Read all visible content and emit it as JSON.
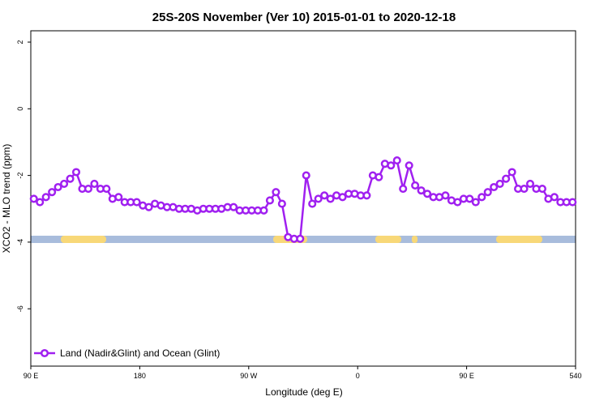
{
  "chart_data": {
    "type": "line",
    "title": "25S-20S November (Ver 10)   2015-01-01 to 2020-12-18",
    "xlabel": "Longitude (deg E)",
    "ylabel": "XCO2 - MLO trend (ppm)",
    "xlim": [
      90,
      540
    ],
    "ylim": [
      -7.72,
      2.34
    ],
    "xticks": [
      {
        "value": 90,
        "label": "90 E"
      },
      180,
      {
        "value": 270,
        "label": "90 W"
      },
      {
        "value": 360,
        "label": "0"
      },
      {
        "value": 450,
        "label": "90 E"
      },
      540
    ],
    "yticks": [
      2,
      0,
      -2,
      -4,
      -6
    ],
    "legend": "bottom-left",
    "series": [
      {
        "name": "Land (Nadir&Glint) and Ocean (Glint)",
        "color": "#a020f0",
        "x": [
          92.5,
          97.5,
          102.5,
          107.5,
          112.5,
          117.5,
          122.5,
          127.5,
          132.5,
          137.5,
          142.5,
          147.5,
          152.5,
          157.5,
          162.5,
          167.5,
          172.5,
          177.5,
          182.5,
          187.5,
          192.5,
          197.5,
          202.5,
          207.5,
          212.5,
          217.5,
          222.5,
          227.5,
          232.5,
          237.5,
          242.5,
          247.5,
          252.5,
          257.5,
          262.5,
          267.5,
          272.5,
          277.5,
          282.5,
          287.5,
          292.5,
          297.5,
          302.5,
          307.5,
          312.5,
          317.5,
          322.5,
          327.5,
          332.5,
          337.5,
          342.5,
          347.5,
          352.5,
          357.5,
          362.5,
          367.5,
          372.5,
          377.5,
          382.5,
          387.5,
          392.5,
          397.5,
          402.5,
          407.5,
          412.5,
          417.5,
          422.5,
          427.5,
          432.5,
          437.5,
          442.5,
          447.5,
          452.5,
          457.5,
          462.5,
          467.5,
          472.5,
          477.5,
          482.5,
          487.5,
          492.5,
          497.5,
          502.5,
          507.5,
          512.5,
          517.5,
          522.5,
          527.5,
          532.5,
          537.5
        ],
        "values": [
          -2.7,
          -2.8,
          -2.65,
          -2.5,
          -2.35,
          -2.25,
          -2.1,
          -1.9,
          -2.4,
          -2.4,
          -2.25,
          -2.4,
          -2.4,
          -2.7,
          -2.65,
          -2.8,
          -2.8,
          -2.8,
          -2.9,
          -2.95,
          -2.85,
          -2.9,
          -2.95,
          -2.95,
          -3.0,
          -3.0,
          -3.0,
          -3.05,
          -3.0,
          -3.0,
          -3.0,
          -3.0,
          -2.95,
          -2.95,
          -3.05,
          -3.05,
          -3.05,
          -3.05,
          -3.05,
          -2.75,
          -2.5,
          -2.85,
          -3.85,
          -3.9,
          -3.9,
          -2.0,
          -2.85,
          -2.7,
          -2.6,
          -2.7,
          -2.6,
          -2.65,
          -2.55,
          -2.55,
          -2.6,
          -2.6,
          -2.0,
          -2.05,
          -1.65,
          -1.7,
          -1.55,
          -2.4,
          -1.7,
          -2.3,
          -2.45,
          -2.55,
          -2.65,
          -2.65,
          -2.6,
          -2.75,
          -2.8,
          -2.7,
          -2.7,
          -2.8,
          -2.65,
          -2.5,
          -2.35,
          -2.25,
          -2.1,
          -1.9,
          -2.4,
          -2.4,
          -2.25,
          -2.4,
          -2.4,
          -2.7,
          -2.65,
          -2.8,
          -2.8,
          -2.8
        ]
      }
    ]
  }
}
